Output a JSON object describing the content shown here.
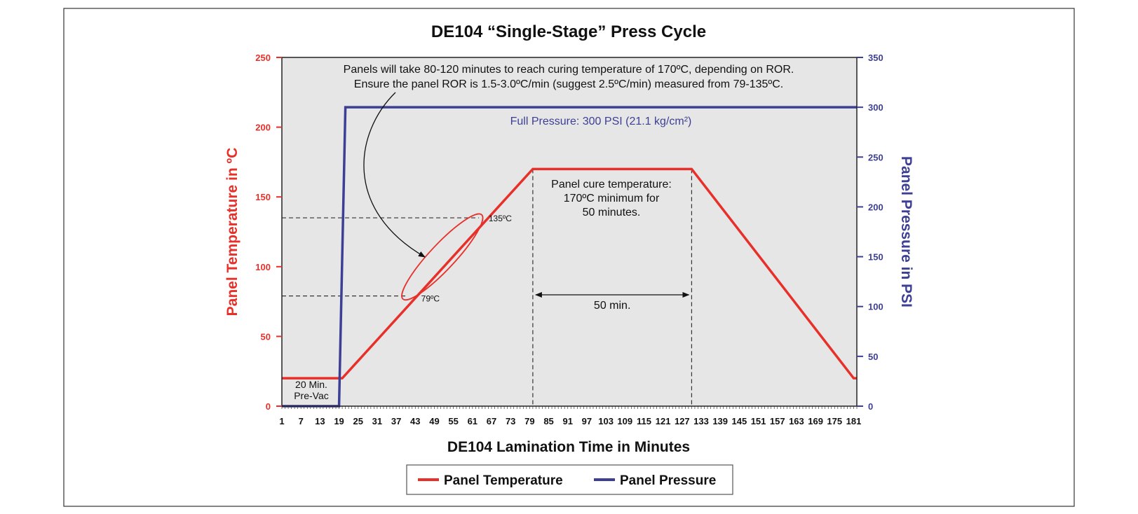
{
  "chart_data": {
    "type": "line",
    "title": "DE104  “Single-Stage” Press Cycle",
    "xlabel": "DE104  Lamination Time in Minutes",
    "ylabel_left": "Panel Temperature in ºC",
    "ylabel_right": "Panel Pressure in PSI",
    "xlim": [
      1,
      182
    ],
    "ylim_left": [
      0,
      250
    ],
    "ylim_right": [
      0,
      350
    ],
    "x_ticks": [
      1,
      7,
      13,
      19,
      25,
      31,
      37,
      43,
      49,
      55,
      61,
      67,
      73,
      79,
      85,
      91,
      97,
      103,
      109,
      115,
      121,
      127,
      133,
      139,
      145,
      151,
      157,
      163,
      169,
      175,
      181
    ],
    "y_ticks_left": [
      0,
      50,
      100,
      150,
      200,
      250
    ],
    "y_ticks_right": [
      0,
      50,
      100,
      150,
      200,
      250,
      300,
      350
    ],
    "grid": false,
    "legend_position": "bottom-center",
    "colors": {
      "temperature": "#e8302a",
      "pressure": "#3d3f94",
      "plot_background": "#e6e6e6",
      "left_axis": "#e8302a",
      "right_axis": "#3d3f94"
    },
    "series": [
      {
        "name": "Panel Temperature",
        "axis": "left",
        "x": [
          1,
          20,
          80,
          130,
          181,
          182
        ],
        "y": [
          20,
          20,
          170,
          170,
          20,
          20
        ]
      },
      {
        "name": "Panel Pressure",
        "axis": "right",
        "x": [
          1,
          19,
          21,
          182
        ],
        "y": [
          0,
          0,
          300,
          300
        ]
      }
    ],
    "reference_lines": [
      {
        "label": "135ºC",
        "temperature": 135,
        "time": 63
      },
      {
        "label": "79ºC",
        "temperature": 79,
        "time": 40
      }
    ],
    "cure_window": {
      "start": 80,
      "end": 130,
      "label": "50 min."
    },
    "annotations": {
      "ror_note": [
        "Panels will take 80-120 minutes to reach curing temperature of 170ºC, depending on ROR.",
        "Ensure the panel ROR is 1.5-3.0ºC/min (suggest 2.5ºC/min) measured from 79-135ºC."
      ],
      "full_pressure": "Full Pressure: 300 PSI (21.1 kg/cm²)",
      "cure_note": [
        "Panel cure temperature:",
        "170ºC minimum for",
        "50 minutes."
      ],
      "prevac": [
        "20 Min.",
        "Pre-Vac"
      ]
    }
  }
}
